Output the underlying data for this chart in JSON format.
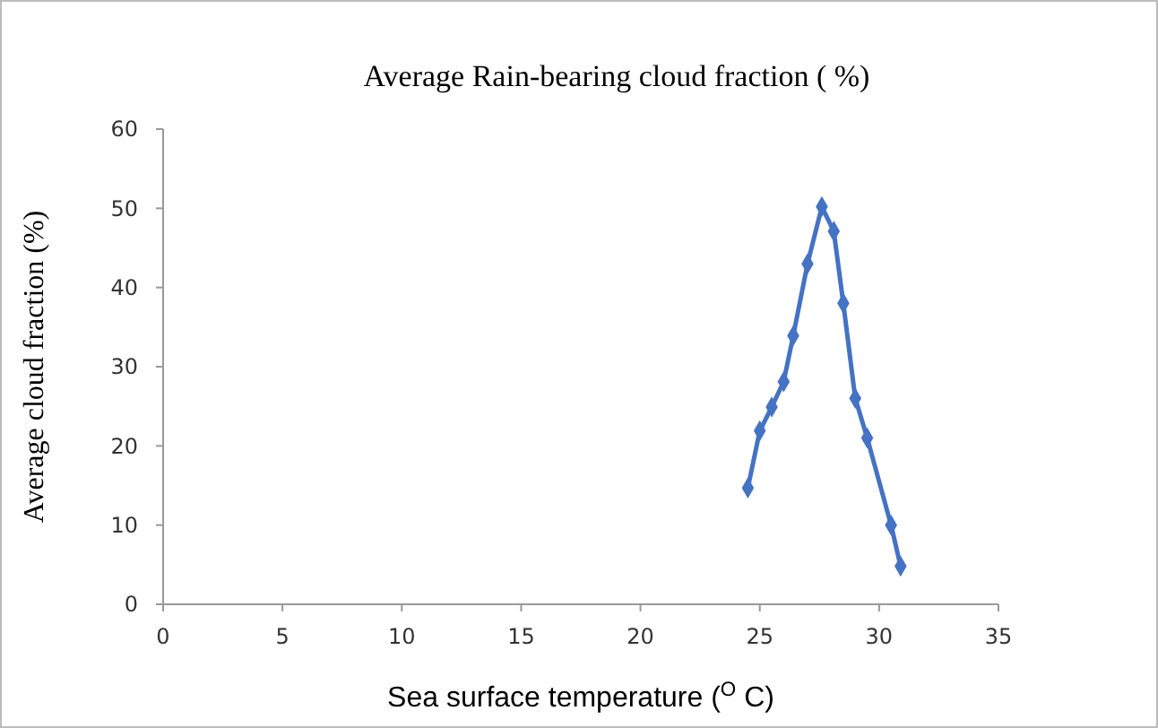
{
  "chart_data": {
    "type": "line",
    "title": "Average Rain-bearing cloud fraction ( %)",
    "xlabel": "Sea surface temperature ($^{O}$ C)",
    "ylabel": "Average cloud fraction (%)",
    "x": [
      24.5,
      25,
      25.5,
      26,
      26.4,
      27,
      27.6,
      28.1,
      28.5,
      29,
      29.5,
      30.5,
      30.9
    ],
    "series": [
      {
        "color": "#4472c4",
        "values": [
          14.7,
          21.9,
          24.9,
          28.1,
          33.9,
          43,
          50.2,
          47.1,
          38,
          26,
          21,
          10,
          4.8
        ]
      }
    ],
    "xlim": [
      0,
      35
    ],
    "xticks": [
      0,
      5,
      10,
      15,
      20,
      25,
      30,
      35
    ],
    "ylim": [
      0,
      60
    ],
    "yticks": [
      0,
      10,
      20,
      30,
      40,
      50,
      60
    ],
    "grid": false,
    "marker": "diamond",
    "line_style": "solid"
  }
}
